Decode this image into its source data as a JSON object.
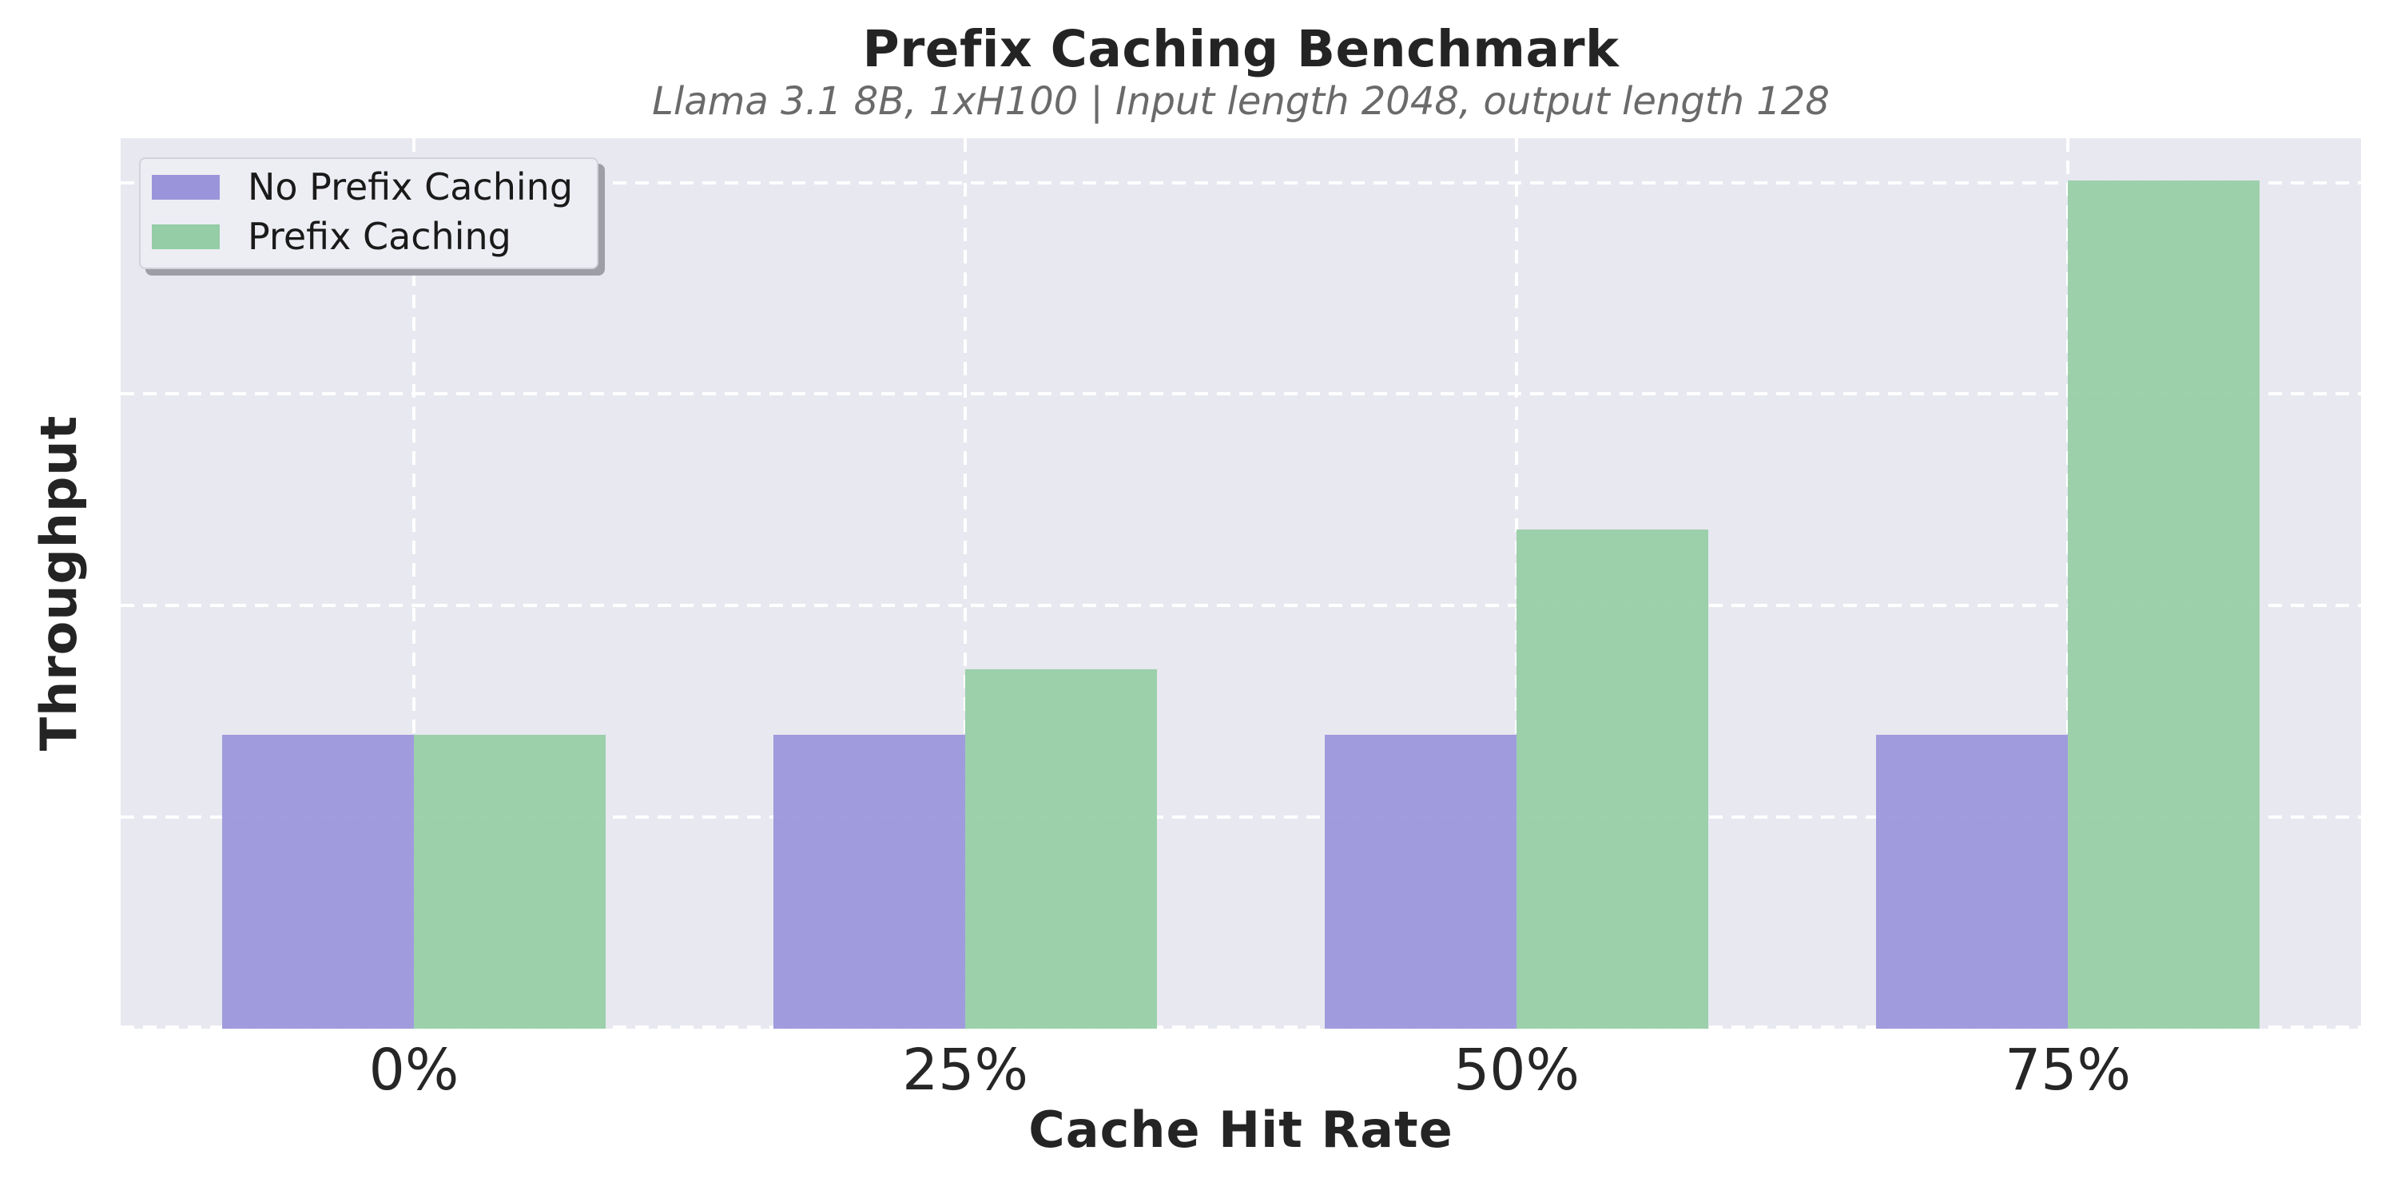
{
  "title": "Prefix Caching Benchmark",
  "subtitle": "Llama 3.1 8B, 1xH100 | Input length 2048, output length 128",
  "axes": {
    "xlabel": "Cache Hit Rate",
    "ylabel": "Throughput"
  },
  "legend": {
    "position": "upper-left",
    "items": [
      {
        "label": "No Prefix Caching",
        "color": "#9a95da"
      },
      {
        "label": "Prefix Caching",
        "color": "#94cda6"
      }
    ]
  },
  "chart_data": {
    "type": "bar",
    "title": "Prefix Caching Benchmark",
    "subtitle": "Llama 3.1 8B, 1xH100 | Input length 2048, output length 128",
    "categories": [
      "0%",
      "25%",
      "50%",
      "75%"
    ],
    "series": [
      {
        "name": "No Prefix Caching",
        "color": "#9a95da",
        "values": [
          1.39,
          1.39,
          1.39,
          1.39
        ]
      },
      {
        "name": "Prefix Caching",
        "color": "#94cda6",
        "values": [
          1.39,
          1.7,
          2.36,
          4.01
        ]
      }
    ],
    "xlabel": "Cache Hit Rate",
    "ylabel": "Throughput",
    "ylim": [
      0,
      4.21
    ],
    "y_gridlines": [
      0,
      1,
      2,
      3,
      4
    ],
    "y_tick_labels": [],
    "grid": "dashed-white-horizontal-and-vertical",
    "legend_position": "upper-left",
    "plot_bgcolor": "#e8e8f0",
    "grid_color": "#ffffff",
    "figure_bgcolor": "#ffffff"
  }
}
